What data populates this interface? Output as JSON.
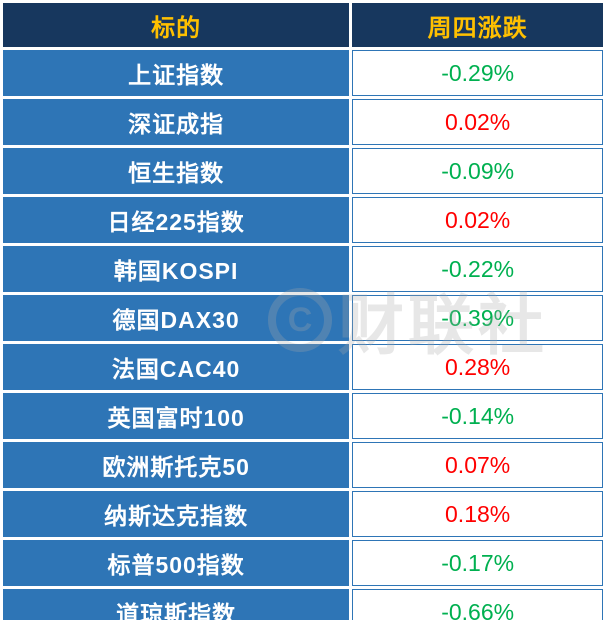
{
  "chart_data": {
    "type": "table",
    "columns": [
      "标的",
      "周四涨跌"
    ],
    "rows": [
      {
        "name": "上证指数",
        "change": "-0.29%",
        "direction": "down"
      },
      {
        "name": "深证成指",
        "change": "0.02%",
        "direction": "up"
      },
      {
        "name": "恒生指数",
        "change": "-0.09%",
        "direction": "down"
      },
      {
        "name": "日经225指数",
        "change": "0.02%",
        "direction": "up"
      },
      {
        "name": "韩国KOSPI",
        "change": "-0.22%",
        "direction": "down"
      },
      {
        "name": "德国DAX30",
        "change": "-0.39%",
        "direction": "down"
      },
      {
        "name": "法国CAC40",
        "change": "0.28%",
        "direction": "up"
      },
      {
        "name": "英国富时100",
        "change": "-0.14%",
        "direction": "down"
      },
      {
        "name": "欧洲斯托克50",
        "change": "0.07%",
        "direction": "up"
      },
      {
        "name": "纳斯达克指数",
        "change": "0.18%",
        "direction": "up"
      },
      {
        "name": "标普500指数",
        "change": "-0.17%",
        "direction": "down"
      },
      {
        "name": "道琼斯指数",
        "change": "-0.66%",
        "direction": "down"
      }
    ]
  },
  "watermark": {
    "logo_letter": "C",
    "text": "财联社"
  },
  "colors": {
    "header_bg": "#17375e",
    "header_text": "#ffc000",
    "cell_bg": "#2e75b6",
    "up": "#ff0000",
    "down": "#00b050"
  }
}
